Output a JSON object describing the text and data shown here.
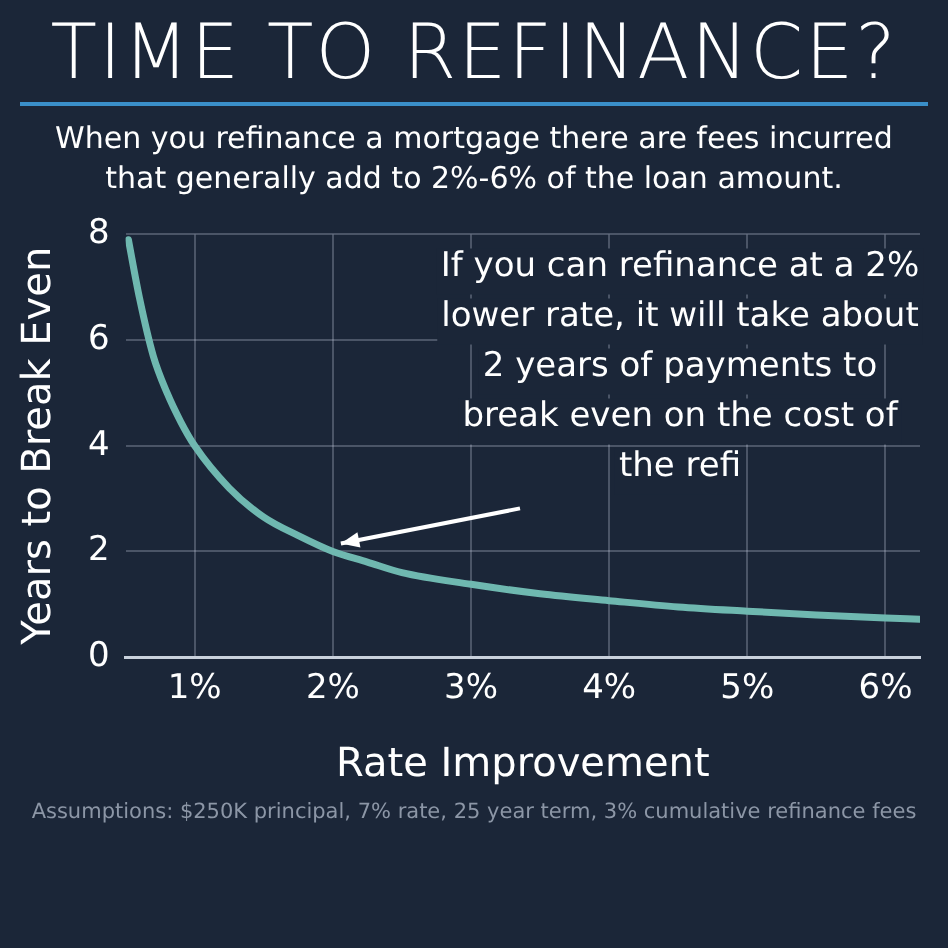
{
  "chart_data": {
    "type": "line",
    "title": "TIME TO REFINANCE?",
    "subtitle": "When you refinance a mortgage there are fees incurred that generally add to 2%-6% of the loan amount.",
    "xlabel": "Rate Improvement",
    "ylabel": "Years to Break Even",
    "x": [
      0.52,
      0.6,
      0.7,
      0.8,
      0.9,
      1,
      1.25,
      1.5,
      1.75,
      2,
      2.25,
      2.5,
      3,
      3.5,
      4,
      4.5,
      5,
      5.5,
      6,
      6.25
    ],
    "series": [
      {
        "color": "#6fb8b0",
        "values": [
          7.9,
          6.8,
          5.7,
          5.0,
          4.45,
          4.0,
          3.2,
          2.65,
          2.3,
          2.0,
          1.8,
          1.6,
          1.38,
          1.2,
          1.07,
          0.95,
          0.87,
          0.8,
          0.74,
          0.72
        ]
      }
    ],
    "xlim": [
      0.5,
      6.25
    ],
    "xticks": [
      {
        "value": 1,
        "label": "1%"
      },
      {
        "value": 2,
        "label": "2%"
      },
      {
        "value": 3,
        "label": "3%"
      },
      {
        "value": 4,
        "label": "4%"
      },
      {
        "value": 5,
        "label": "5%"
      },
      {
        "value": 6,
        "label": "6%"
      }
    ],
    "ylim": [
      0,
      8
    ],
    "yticks": [
      0,
      2,
      4,
      6,
      8
    ],
    "grid": true,
    "legend": false,
    "marker": "none",
    "line_style": "solid",
    "annotations": [
      {
        "text": "If you can refinance at a 2% lower rate, it will take about 2 years of payments to break even on the cost of the refi",
        "x": 2,
        "y": 2
      },
      "Assumptions: $250K principal, 7% rate, 25 year term, 3% cumulative refinance fees"
    ]
  }
}
